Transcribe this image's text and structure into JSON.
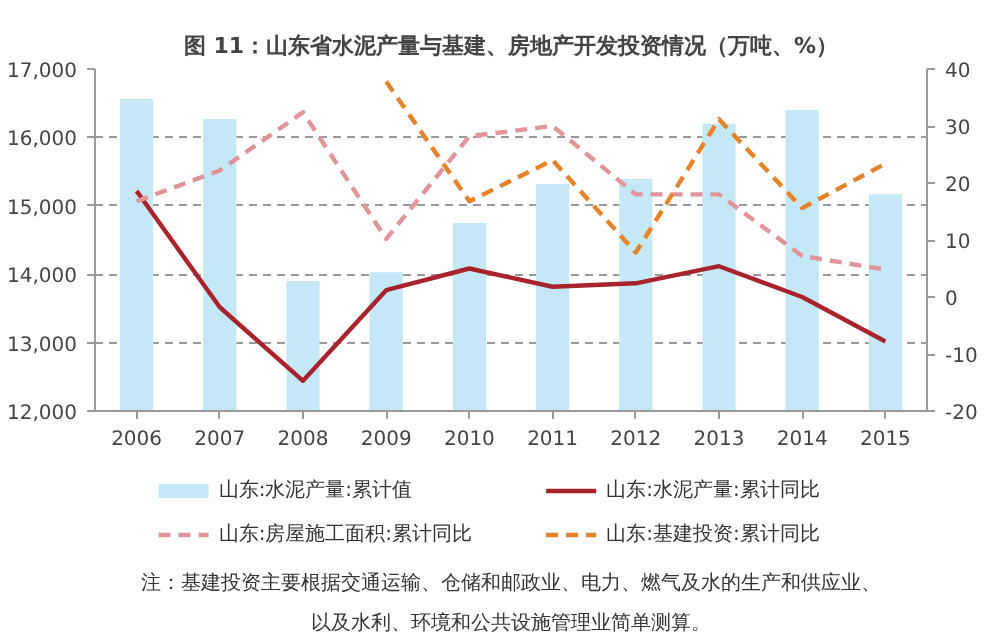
{
  "chart_data": {
    "type": "bar",
    "title": "图 11：山东省水泥产量与基建、房地产开发投资情况（万吨、%）",
    "categories": [
      "2006",
      "2007",
      "2008",
      "2009",
      "2010",
      "2011",
      "2012",
      "2013",
      "2014",
      "2015"
    ],
    "series": [
      {
        "name": "山东:水泥产量:累计值",
        "color": "#c5e8f7",
        "values": [
          16560,
          16270,
          13900,
          14030,
          14750,
          15320,
          15390,
          16200,
          16400,
          15170
        ]
      },
      {
        "name": "山东:水泥产量:累计同比",
        "type": "line",
        "axis": "y2",
        "color": "#a8242c",
        "line_style": "solid",
        "values": [
          18.6,
          -1.8,
          -14.7,
          1.2,
          5.0,
          1.8,
          2.4,
          5.4,
          0,
          -7.8
        ]
      },
      {
        "name": "山东:房屋施工面积:累计同比",
        "type": "line",
        "axis": "y2",
        "color": "#e0959a",
        "line_style": "dashed",
        "values": [
          16.8,
          22.2,
          32.4,
          10.2,
          28.2,
          30,
          18,
          18,
          7.2,
          4.8
        ]
      },
      {
        "name": "山东:基建投资:累计同比",
        "type": "line",
        "axis": "y2",
        "color": "#e5822a",
        "line_style": "dashed",
        "values": [
          null,
          null,
          null,
          37.8,
          16.8,
          24,
          7.8,
          31.2,
          15.6,
          23.4
        ]
      }
    ],
    "ylim": [
      12000,
      17000
    ],
    "yticks": [
      {
        "value": 12000,
        "label": "12,000"
      },
      {
        "value": 13000,
        "label": "13,000"
      },
      {
        "value": 14000,
        "label": "14,000"
      },
      {
        "value": 15000,
        "label": "15,000"
      },
      {
        "value": 16000,
        "label": "16,000"
      },
      {
        "value": 17000,
        "label": "17,000"
      }
    ],
    "y2lim": [
      -20,
      40
    ],
    "y2ticks": [
      -20,
      -10,
      0,
      10,
      20,
      30,
      40
    ],
    "grid": "y",
    "legend": "bottom",
    "annotations": [
      "注：基建投资主要根据交通运输、仓储和邮政业、电力、燃气及水的生产和供应业、",
      "以及水利、环境和公共设施管理业简单测算。"
    ]
  }
}
